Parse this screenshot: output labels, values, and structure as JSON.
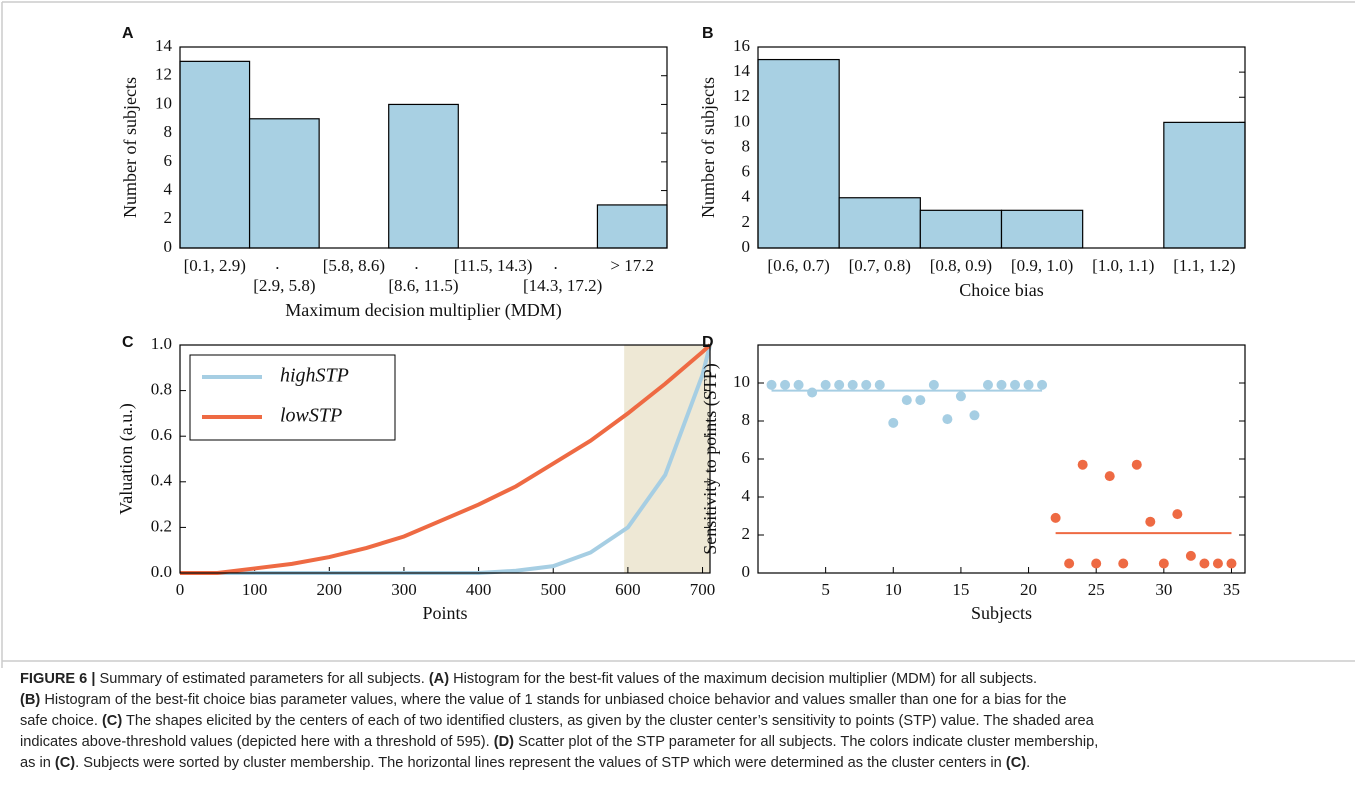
{
  "chart_data": [
    {
      "type": "bar",
      "panel": "A",
      "ylabel": "Number of subjects",
      "xlabel": "Maximum decision multiplier (MDM)",
      "categories": [
        "[0.1, 2.9)",
        "[2.9, 5.8)",
        "[5.8, 8.6)",
        "[8.6, 11.5)",
        "[11.5, 14.3)",
        "[14.3, 17.2)",
        "> 17.2"
      ],
      "staggered_labels": true,
      "gap_labels": [
        ".",
        ".",
        "."
      ],
      "values": [
        13,
        9,
        0,
        10,
        0,
        0,
        3
      ],
      "color": "#a8d0e3",
      "ylim": [
        0,
        14
      ],
      "yticks": [
        0,
        2,
        4,
        6,
        8,
        10,
        12,
        14
      ]
    },
    {
      "type": "bar",
      "panel": "B",
      "ylabel": "Number of subjects",
      "xlabel": "Choice bias",
      "categories": [
        "[0.6, 0.7)",
        "[0.7, 0.8)",
        "[0.8, 0.9)",
        "[0.9, 1.0)",
        "[1.0, 1.1)",
        "[1.1, 1.2)"
      ],
      "staggered_labels": false,
      "values": [
        15,
        4,
        3,
        3,
        0,
        10
      ],
      "color": "#a8d0e3",
      "ylim": [
        0,
        16
      ],
      "yticks": [
        0,
        2,
        4,
        6,
        8,
        10,
        12,
        14,
        16
      ]
    },
    {
      "type": "line",
      "panel": "C",
      "ylabel": "Valuation (a.u.)",
      "xlabel": "Points",
      "x": [
        0,
        50,
        100,
        150,
        200,
        250,
        300,
        350,
        400,
        450,
        500,
        550,
        600,
        650,
        700,
        710
      ],
      "series": [
        {
          "name": "highSTP",
          "color": "#a6cee3",
          "values": [
            0,
            0,
            0,
            0,
            0,
            0,
            0,
            0,
            0,
            0.01,
            0.03,
            0.09,
            0.2,
            0.43,
            0.87,
            1
          ]
        },
        {
          "name": "lowSTP",
          "color": "#ee6a43",
          "values": [
            0,
            0,
            0.02,
            0.04,
            0.07,
            0.11,
            0.16,
            0.23,
            0.3,
            0.38,
            0.48,
            0.58,
            0.7,
            0.83,
            0.97,
            1
          ]
        }
      ],
      "shaded_range": [
        595,
        710
      ],
      "shade_color": "#eee8d5",
      "legend": "upper left",
      "xlim": [
        0,
        710
      ],
      "xticks": [
        0,
        100,
        200,
        300,
        400,
        500,
        600,
        700
      ],
      "ylim": [
        0,
        1
      ],
      "yticks": [
        {
          "value": 0,
          "label": "0.0"
        },
        0.2,
        0.4,
        0.6,
        0.8,
        {
          "value": 1,
          "label": "1.0"
        }
      ]
    },
    {
      "type": "scatter",
      "panel": "D",
      "ylabel": "Sensitivity to points (STP)",
      "xlabel": "Subjects",
      "series": [
        {
          "color": "#a6cee3",
          "x": [
            1,
            2,
            3,
            4,
            5,
            6,
            7,
            8,
            9,
            10,
            11,
            12,
            13,
            14,
            15,
            16,
            17,
            18,
            19,
            20,
            21
          ],
          "values": [
            9.9,
            9.9,
            9.9,
            9.5,
            9.9,
            9.9,
            9.9,
            9.9,
            9.9,
            7.9,
            9.1,
            9.1,
            9.9,
            8.1,
            9.3,
            8.3,
            9.9,
            9.9,
            9.9,
            9.9,
            9.9
          ],
          "center": 9.6
        },
        {
          "color": "#ee6a43",
          "x": [
            22,
            23,
            24,
            25,
            26,
            27,
            28,
            29,
            30,
            31,
            32,
            33,
            34,
            35
          ],
          "values": [
            2.9,
            0.5,
            5.7,
            0.5,
            5.1,
            0.5,
            5.7,
            2.7,
            0.5,
            3.1,
            0.9,
            0.5,
            0.5,
            0.5
          ],
          "center": 2.1
        }
      ],
      "xlim": [
        0,
        36
      ],
      "xticks": [
        5,
        10,
        15,
        20,
        25,
        30,
        35
      ],
      "ylim": [
        0,
        12
      ],
      "yticks": [
        0,
        2,
        4,
        6,
        8,
        10
      ]
    }
  ],
  "caption": {
    "lines": [
      [
        {
          "text": "FIGURE 6 |",
          "bold": true
        },
        {
          "text": " Summary of estimated parameters for all subjects. ",
          "bold": false
        },
        {
          "text": "(A)",
          "bold": true
        },
        {
          "text": " Histogram for the best-fit values of the maximum decision multiplier (MDM) for all subjects.",
          "bold": false
        }
      ],
      [
        {
          "text": "(B)",
          "bold": true
        },
        {
          "text": " Histogram of the best-fit choice bias parameter values, where the value of 1 stands for unbiased choice behavior and values smaller than one for a bias for the",
          "bold": false
        }
      ],
      [
        {
          "text": "safe choice. ",
          "bold": false
        },
        {
          "text": "(C)",
          "bold": true
        },
        {
          "text": " The shapes elicited by the centers of each of two identified clusters, as given by the cluster center’s sensitivity to points (STP) value. The shaded area",
          "bold": false
        }
      ],
      [
        {
          "text": "indicates above-threshold values (depicted here with a threshold of 595). ",
          "bold": false
        },
        {
          "text": "(D)",
          "bold": true
        },
        {
          "text": " Scatter plot of the STP parameter for all subjects. The colors indicate cluster membership,",
          "bold": false
        }
      ],
      [
        {
          "text": "as in ",
          "bold": false
        },
        {
          "text": "(C)",
          "bold": true
        },
        {
          "text": ". Subjects were sorted by cluster membership. The horizontal lines represent the values of STP which were determined as the cluster centers in ",
          "bold": false
        },
        {
          "text": "(C)",
          "bold": true
        },
        {
          "text": ".",
          "bold": false
        }
      ]
    ]
  }
}
